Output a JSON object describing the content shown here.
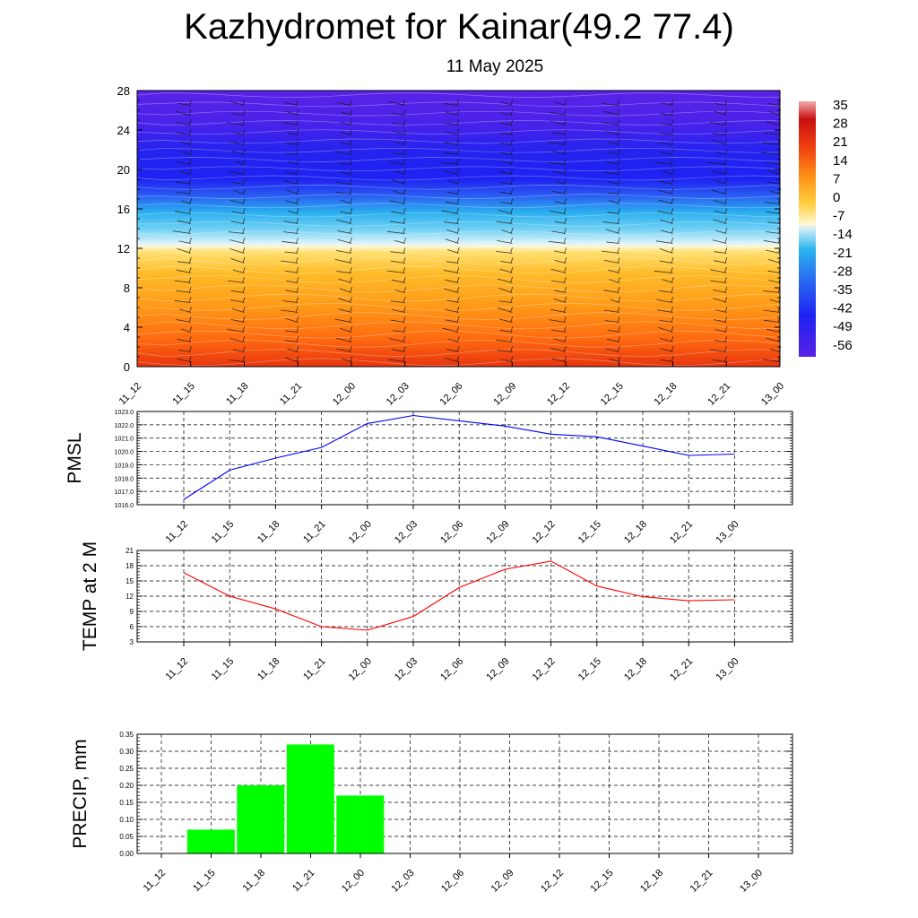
{
  "title": "Kazhydromet for Kainar(49.2 77.4)",
  "subtitle": "11 May 2025",
  "time_labels": [
    "11_12",
    "11_15",
    "11_18",
    "11_21",
    "12_00",
    "12_03",
    "12_06",
    "12_09",
    "12_12",
    "12_15",
    "12_18",
    "12_21",
    "13_00"
  ],
  "chart_data": [
    {
      "type": "heatmap",
      "name": "upper-air temperature cross-section",
      "x": [
        "11_12",
        "11_15",
        "11_18",
        "11_21",
        "12_00",
        "12_03",
        "12_06",
        "12_09",
        "12_12",
        "12_15",
        "12_18",
        "12_21",
        "13_00"
      ],
      "y_ticks": [
        0,
        4,
        8,
        12,
        16,
        20,
        24,
        28
      ],
      "ylim": [
        0,
        28
      ],
      "colorbar_labels": [
        "35",
        "28",
        "21",
        "14",
        "7",
        "0",
        "-7",
        "-14",
        "-21",
        "-28",
        "-35",
        "-42",
        "-49",
        "-56"
      ],
      "colors": {
        "hot": "#e8340f",
        "warm": "#ffab1a",
        "pale": "#fff3c4",
        "ice": "#cdeef9",
        "cyan": "#2fb5ee",
        "blue": "#1e22f2",
        "violet": "#5a1fe8"
      },
      "overlay": "wind barbs"
    },
    {
      "type": "line",
      "ylabel": "PMSL",
      "categories": [
        "11_12",
        "11_15",
        "11_18",
        "11_21",
        "12_00",
        "12_03",
        "12_06",
        "12_09",
        "12_12",
        "12_15",
        "12_18",
        "12_21",
        "13_00"
      ],
      "values": [
        1016.4,
        1018.6,
        1019.5,
        1020.3,
        1022.1,
        1022.7,
        1022.3,
        1021.9,
        1021.3,
        1021.1,
        1020.4,
        1019.7,
        1019.8
      ],
      "ylim": [
        1016.0,
        1023.0
      ],
      "y_ticks": [
        "1016.0",
        "1017.0",
        "1018.0",
        "1019.0",
        "1020.0",
        "1021.0",
        "1022.0",
        "1023.0"
      ],
      "color": "#0000ff"
    },
    {
      "type": "line",
      "ylabel": "TEMP at 2 M",
      "categories": [
        "11_12",
        "11_15",
        "11_18",
        "11_21",
        "12_00",
        "12_03",
        "12_06",
        "12_09",
        "12_12",
        "12_15",
        "12_18",
        "12_21",
        "13_00"
      ],
      "values": [
        16.6,
        12.0,
        9.5,
        6.0,
        5.3,
        8.0,
        13.7,
        17.3,
        18.9,
        14.0,
        11.9,
        11.1,
        11.3
      ],
      "ylim": [
        3,
        21
      ],
      "y_ticks": [
        "3",
        "6",
        "9",
        "12",
        "15",
        "18",
        "21"
      ],
      "color": "#ff0000"
    },
    {
      "type": "bar",
      "ylabel": "PRECIP, mm",
      "categories": [
        "11_12",
        "11_15",
        "11_18",
        "11_21",
        "12_00",
        "12_03",
        "12_06",
        "12_09",
        "12_12",
        "12_15",
        "12_18",
        "12_21",
        "13_00"
      ],
      "values": [
        0,
        0.07,
        0.2,
        0.32,
        0.17,
        0,
        0,
        0,
        0,
        0,
        0,
        0,
        0
      ],
      "ylim": [
        0,
        0.35
      ],
      "y_ticks": [
        "0.00",
        "0.05",
        "0.10",
        "0.15",
        "0.20",
        "0.25",
        "0.30",
        "0.35"
      ],
      "color": "#00ff00"
    }
  ]
}
